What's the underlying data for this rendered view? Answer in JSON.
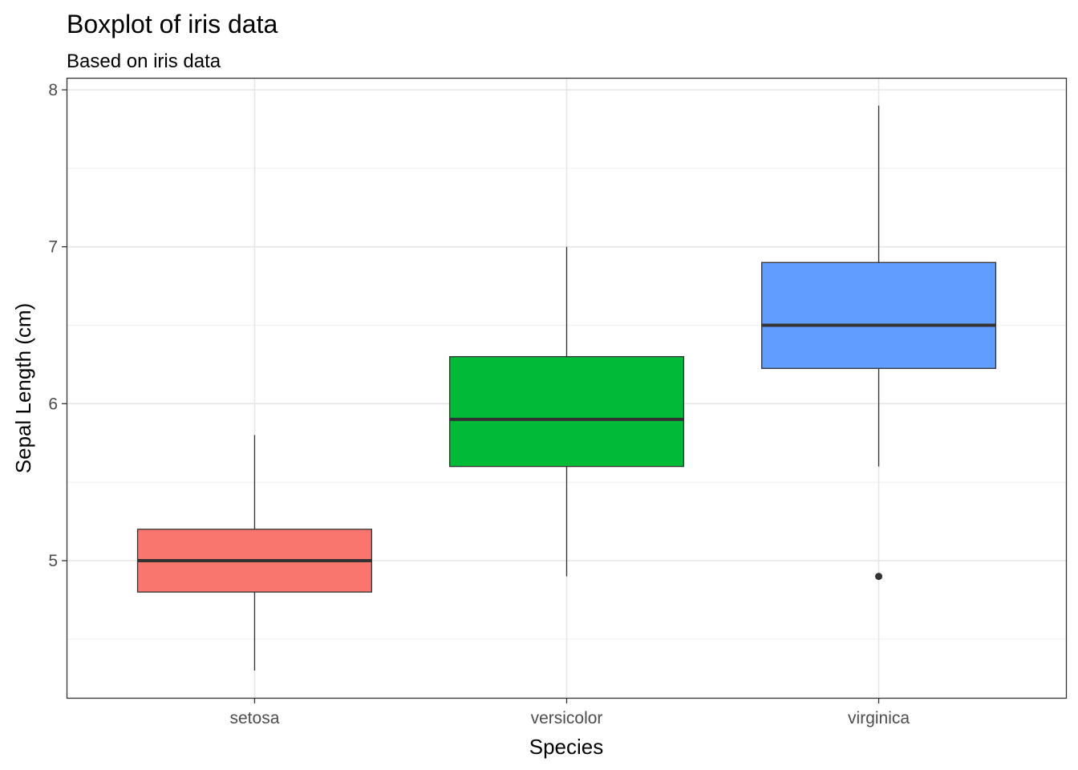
{
  "chart_data": {
    "type": "boxplot",
    "title": "Boxplot of iris data",
    "subtitle": "Based on iris data",
    "xlabel": "Species",
    "ylabel": "Sepal Length (cm)",
    "ylim": [
      4.3,
      8.0
    ],
    "yticks": [
      5,
      6,
      7,
      8
    ],
    "yminor": [
      4.5,
      5.5,
      6.5,
      7.5
    ],
    "grid": true,
    "legend": "none",
    "categories": [
      "setosa",
      "versicolor",
      "virginica"
    ],
    "boxes": [
      {
        "category": "setosa",
        "whisker_low": 4.3,
        "q1": 4.8,
        "median": 5.0,
        "q3": 5.2,
        "whisker_high": 5.8,
        "outliers": [],
        "color": "#F8766D"
      },
      {
        "category": "versicolor",
        "whisker_low": 4.9,
        "q1": 5.6,
        "median": 5.9,
        "q3": 6.3,
        "whisker_high": 7.0,
        "outliers": [],
        "color": "#00BA38"
      },
      {
        "category": "virginica",
        "whisker_low": 5.6,
        "q1": 6.225,
        "median": 6.5,
        "q3": 6.9,
        "whisker_high": 7.9,
        "outliers": [
          4.9
        ],
        "color": "#619CFF"
      }
    ]
  }
}
